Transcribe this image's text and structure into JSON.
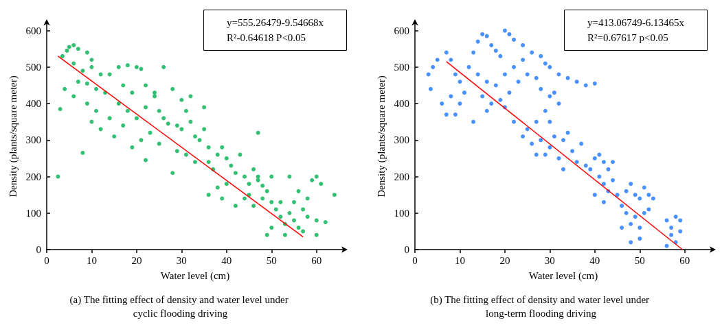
{
  "chart_data": [
    {
      "type": "scatter",
      "xlabel": "Water level (cm)",
      "ylabel": "Density (plants/square meter)",
      "xlim": [
        0,
        66
      ],
      "ylim": [
        0,
        620
      ],
      "xticks": [
        0,
        10,
        20,
        30,
        40,
        50,
        60
      ],
      "yticks": [
        0,
        100,
        200,
        300,
        400,
        500,
        600
      ],
      "grid": false,
      "marker": "circle",
      "annotations": [
        "y=555.26479-9.54668x",
        "R²-0.64618 P<0.05",
        "(a) The fitting effect of density and water level under cyclic flooding driving"
      ],
      "series": [
        {
          "color": "#00b050",
          "x": [
            2.5,
            3,
            4,
            8,
            3.5,
            5,
            6,
            4.5,
            7,
            9,
            10,
            6,
            8,
            10,
            12,
            9,
            11,
            13,
            7,
            6,
            9,
            11,
            14,
            12,
            10,
            15,
            14,
            16,
            18,
            20,
            21,
            17,
            19,
            22,
            24,
            16,
            18,
            20,
            22,
            25,
            26,
            24,
            17,
            21,
            19,
            23,
            22,
            25,
            26,
            28,
            30,
            31,
            29,
            27,
            30,
            32,
            33,
            34,
            35,
            36,
            31,
            33,
            29,
            35,
            32,
            28,
            36,
            38,
            40,
            41,
            42,
            39,
            37,
            38,
            36,
            39,
            40,
            43,
            44,
            45,
            46,
            47,
            48,
            49,
            47,
            45,
            44,
            42,
            46,
            48,
            50,
            51,
            52,
            53,
            52,
            54,
            55,
            50,
            53,
            49,
            56,
            55,
            57,
            58,
            56,
            59,
            60,
            61,
            58,
            60,
            62,
            64,
            47,
            50,
            54,
            57,
            60
          ],
          "values": [
            200,
            385,
            440,
            265,
            530,
            555,
            560,
            545,
            550,
            540,
            520,
            510,
            490,
            500,
            480,
            455,
            440,
            430,
            460,
            420,
            400,
            380,
            360,
            330,
            350,
            310,
            480,
            500,
            505,
            500,
            495,
            450,
            430,
            450,
            430,
            400,
            380,
            360,
            390,
            380,
            360,
            420,
            340,
            300,
            280,
            320,
            245,
            290,
            500,
            440,
            410,
            380,
            340,
            345,
            330,
            350,
            310,
            300,
            330,
            280,
            260,
            240,
            270,
            390,
            420,
            210,
            240,
            260,
            250,
            230,
            210,
            280,
            220,
            170,
            150,
            140,
            180,
            260,
            200,
            180,
            220,
            190,
            175,
            160,
            200,
            150,
            140,
            120,
            120,
            140,
            130,
            110,
            90,
            70,
            130,
            100,
            80,
            60,
            40,
            40,
            60,
            130,
            110,
            140,
            160,
            190,
            200,
            180,
            90,
            80,
            75,
            150,
            320,
            200,
            200,
            50,
            40
          ]
        },
        {
          "type": "line",
          "marker": "none",
          "color": "#ff0000",
          "x": [
            2.5,
            57
          ],
          "values": [
            530,
            35
          ]
        }
      ]
    },
    {
      "type": "scatter",
      "xlabel": "Water level (cm)",
      "ylabel": "Density (plants/square meter)",
      "xlim": [
        0,
        66
      ],
      "ylim": [
        0,
        620
      ],
      "xticks": [
        0,
        10,
        20,
        30,
        40,
        50,
        60
      ],
      "yticks": [
        0,
        100,
        200,
        300,
        400,
        500,
        600
      ],
      "grid": false,
      "marker": "circle",
      "annotations": [
        "y=413.06749-6.13465x",
        "R²=0.67617 p<0.05",
        "(b) The fitting effect of density and water level under long-term flooding driving"
      ],
      "series": [
        {
          "color": "#1a75ff",
          "x": [
            3,
            4,
            3.5,
            5,
            6,
            7,
            8,
            9,
            10,
            8,
            10,
            7,
            9,
            11,
            12,
            13,
            14,
            15,
            16,
            17,
            18,
            20,
            21,
            22,
            24,
            19,
            14,
            16,
            18,
            20,
            22,
            24,
            26,
            28,
            29,
            15,
            17,
            19,
            21,
            23,
            25,
            27,
            30,
            32,
            34,
            36,
            38,
            40,
            13,
            16,
            20,
            22,
            24,
            26,
            27,
            25,
            28,
            30,
            31,
            32,
            29,
            28,
            29,
            30,
            31,
            32,
            27,
            30,
            33,
            34,
            35,
            36,
            37,
            33,
            38,
            39,
            40,
            41,
            42,
            43,
            44,
            41,
            42,
            43,
            44,
            45,
            40,
            42,
            46,
            47,
            48,
            49,
            50,
            51,
            52,
            47,
            48,
            49,
            50,
            51,
            46,
            48,
            50,
            52,
            53,
            56,
            57,
            58,
            59,
            57,
            58,
            56,
            59
          ],
          "values": [
            480,
            500,
            440,
            520,
            400,
            540,
            520,
            480,
            460,
            420,
            400,
            370,
            370,
            430,
            500,
            540,
            570,
            590,
            585,
            560,
            545,
            600,
            590,
            575,
            560,
            530,
            480,
            460,
            450,
            480,
            500,
            520,
            540,
            530,
            510,
            420,
            400,
            410,
            430,
            460,
            480,
            470,
            500,
            480,
            470,
            460,
            450,
            455,
            350,
            380,
            390,
            350,
            310,
            290,
            260,
            330,
            440,
            420,
            430,
            400,
            380,
            300,
            260,
            280,
            310,
            250,
            350,
            350,
            300,
            320,
            270,
            240,
            290,
            220,
            230,
            220,
            250,
            260,
            240,
            220,
            240,
            200,
            180,
            160,
            190,
            150,
            150,
            130,
            120,
            160,
            180,
            150,
            140,
            170,
            150,
            100,
            70,
            90,
            60,
            100,
            60,
            20,
            30,
            110,
            140,
            80,
            60,
            90,
            80,
            40,
            20,
            10,
            50
          ]
        },
        {
          "type": "line",
          "marker": "none",
          "color": "#ff0000",
          "x": [
            7,
            59.5
          ],
          "values": [
            515,
            0
          ]
        }
      ]
    }
  ]
}
